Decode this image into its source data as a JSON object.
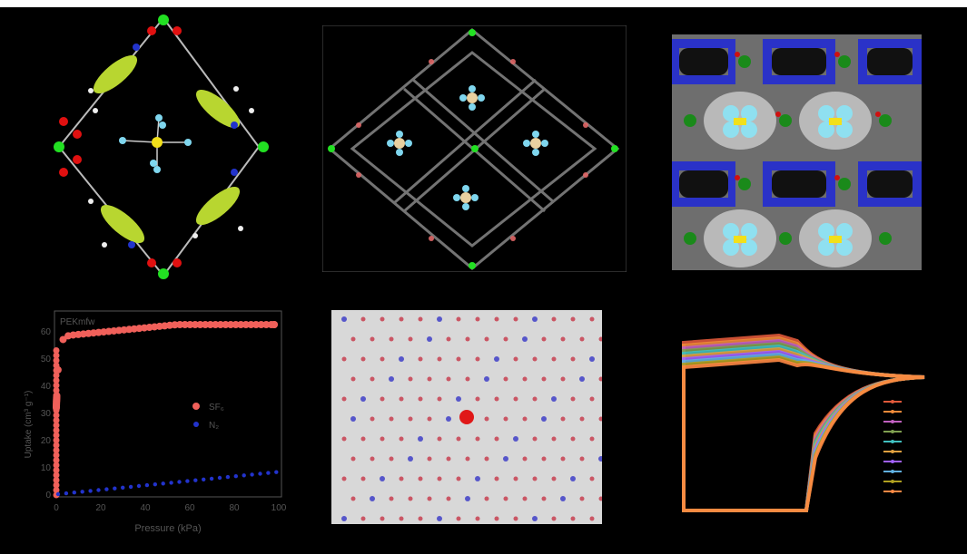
{
  "isotherm": {
    "title": "PEKmfw",
    "ylabel": "Uptake (cm³ g⁻¹)",
    "xlabel": "Pressure (kPa)",
    "yticks": [
      "0",
      "10",
      "20",
      "30",
      "40",
      "50",
      "60"
    ],
    "xticks": [
      "0",
      "20",
      "40",
      "60",
      "80",
      "100"
    ],
    "legend": [
      {
        "label": "SF₆",
        "color": "#f0605a"
      },
      {
        "label": "N₂",
        "color": "#2233cc"
      }
    ]
  },
  "diffraction": {
    "accent": "#e01818"
  },
  "colors": {
    "background": "#000000",
    "framework_green": "#b8d630",
    "sf6_cyan": "#7fd6ee",
    "surface_blue": "#2a32c8",
    "surface_gray": "#9a9a9a"
  }
}
